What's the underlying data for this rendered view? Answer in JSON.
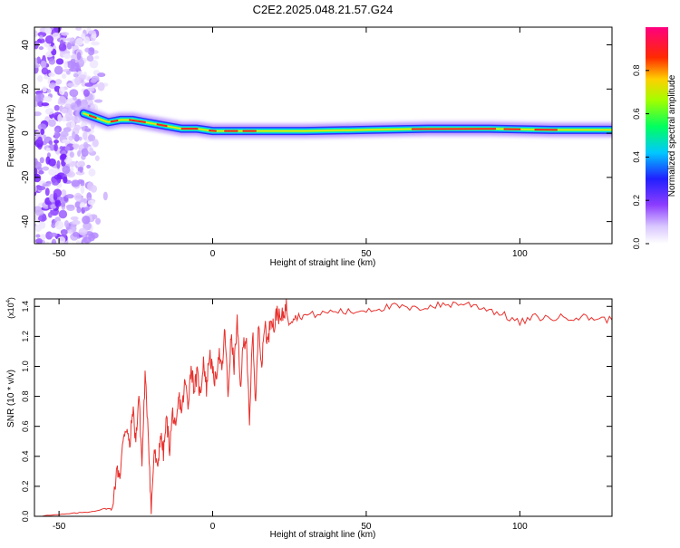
{
  "title": "C2E2.2025.048.21.57.G24",
  "colors": {
    "snr_line": "#e8302c",
    "axis": "#000000",
    "background": "#ffffff"
  },
  "chart_data": [
    {
      "type": "heatmap",
      "xlabel": "Height of straight line (km)",
      "ylabel": "Frequency (Hz)",
      "xlim": [
        -58,
        130
      ],
      "ylim": [
        -50,
        48
      ],
      "x_ticks": [
        {
          "value": -50,
          "label": "-50"
        },
        {
          "value": 0,
          "label": "0"
        },
        {
          "value": 50,
          "label": "50"
        },
        {
          "value": 100,
          "label": "100"
        }
      ],
      "y_ticks": [
        {
          "value": -40,
          "label": "-40"
        },
        {
          "value": -20,
          "label": "-20"
        },
        {
          "value": 0,
          "label": "0"
        },
        {
          "value": 20,
          "label": "20"
        },
        {
          "value": 40,
          "label": "40"
        }
      ],
      "colorbar": {
        "label": "Normalized spectral amplitude",
        "range": [
          0,
          1
        ],
        "ticks": [
          {
            "value": 0.0,
            "label": "0.0"
          },
          {
            "value": 0.2,
            "label": "0.2"
          },
          {
            "value": 0.4,
            "label": "0.4"
          },
          {
            "value": 0.6,
            "label": "0.6"
          },
          {
            "value": 0.8,
            "label": "0.8"
          }
        ],
        "colormap": "white-purple-blue-cyan-green-yellow-red-magenta"
      },
      "frequency_ridge": {
        "x": [
          -42,
          -38,
          -34,
          -30,
          -26,
          -22,
          -18,
          -14,
          -10,
          -5,
          0,
          10,
          20,
          30,
          50,
          70,
          90,
          110,
          130
        ],
        "y": [
          9,
          7,
          5,
          6,
          6,
          5,
          4,
          3,
          2,
          2,
          1,
          1,
          1,
          1,
          1.5,
          2,
          2,
          1.5,
          1.5
        ]
      },
      "noise_region": {
        "x_range": [
          -58,
          -38
        ],
        "y_range": [
          -50,
          48
        ]
      }
    },
    {
      "type": "line",
      "xlabel": "Height of straight line (km)",
      "ylabel": "SNR (10 * v/v)",
      "scale_label": "(x10",
      "scale_exponent": "4",
      "xlim": [
        -58,
        130
      ],
      "ylim": [
        0,
        1.45
      ],
      "x_ticks": [
        {
          "value": -50,
          "label": "-50"
        },
        {
          "value": 0,
          "label": "0"
        },
        {
          "value": 50,
          "label": "50"
        },
        {
          "value": 100,
          "label": "100"
        }
      ],
      "y_ticks": [
        {
          "value": 0.0,
          "label": "0.0"
        },
        {
          "value": 0.2,
          "label": "0.2"
        },
        {
          "value": 0.4,
          "label": "0.4"
        },
        {
          "value": 0.6,
          "label": "0.6"
        },
        {
          "value": 0.8,
          "label": "0.8"
        },
        {
          "value": 1.0,
          "label": "1.0"
        },
        {
          "value": 1.2,
          "label": "1.2"
        },
        {
          "value": 1.4,
          "label": "1.4"
        }
      ],
      "series": [
        {
          "x": [
            -58,
            -50,
            -45,
            -40,
            -35,
            -33,
            -31,
            -30,
            -29,
            -28,
            -27,
            -26,
            -25,
            -24,
            -23,
            -22,
            -21,
            -20,
            -19,
            -18,
            -17,
            -16,
            -15,
            -14,
            -13,
            -12,
            -11,
            -10,
            -9,
            -8,
            -7,
            -6,
            -5,
            -4,
            -3,
            -2,
            -1,
            0,
            1,
            2,
            3,
            4,
            5,
            6,
            7,
            8,
            9,
            10,
            11,
            12,
            13,
            14,
            15,
            16,
            17,
            18,
            19,
            20,
            21,
            22,
            23,
            24,
            25,
            27,
            30,
            35,
            40,
            45,
            50,
            55,
            60,
            65,
            70,
            75,
            80,
            85,
            90,
            95,
            100,
            105,
            110,
            115,
            120,
            125,
            130
          ],
          "y": [
            0.0,
            0.01,
            0.02,
            0.03,
            0.05,
            0.05,
            0.31,
            0.28,
            0.55,
            0.6,
            0.45,
            0.72,
            0.5,
            0.82,
            0.35,
            0.93,
            0.6,
            0.03,
            0.45,
            0.3,
            0.55,
            0.42,
            0.65,
            0.45,
            0.7,
            0.55,
            0.8,
            0.7,
            0.9,
            0.75,
            1.0,
            0.85,
            0.95,
            0.8,
            1.05,
            0.85,
            1.1,
            0.95,
            0.9,
            1.1,
            0.95,
            1.25,
            0.8,
            1.2,
            1.0,
            1.3,
            0.85,
            1.15,
            1.2,
            0.58,
            1.25,
            0.75,
            1.3,
            1.0,
            1.3,
            1.15,
            1.35,
            1.25,
            1.38,
            1.3,
            1.35,
            1.4,
            1.3,
            1.33,
            1.34,
            1.35,
            1.37,
            1.36,
            1.38,
            1.39,
            1.4,
            1.38,
            1.4,
            1.41,
            1.42,
            1.41,
            1.38,
            1.34,
            1.29,
            1.33,
            1.32,
            1.33,
            1.33,
            1.32,
            1.31
          ]
        }
      ]
    }
  ]
}
